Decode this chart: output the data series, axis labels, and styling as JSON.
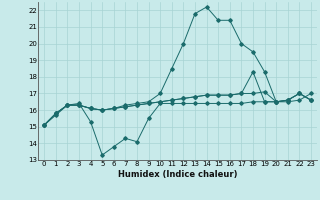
{
  "title": "",
  "xlabel": "Humidex (Indice chaleur)",
  "ylabel": "",
  "bg_color": "#c8eaea",
  "line_color": "#1a6b6b",
  "grid_color": "#a8d4d4",
  "xlim": [
    -0.5,
    23.5
  ],
  "ylim": [
    13,
    22.5
  ],
  "yticks": [
    13,
    14,
    15,
    16,
    17,
    18,
    19,
    20,
    21,
    22
  ],
  "xticks": [
    0,
    1,
    2,
    3,
    4,
    5,
    6,
    7,
    8,
    9,
    10,
    11,
    12,
    13,
    14,
    15,
    16,
    17,
    18,
    19,
    20,
    21,
    22,
    23
  ],
  "series": [
    [
      15.1,
      15.7,
      16.3,
      16.4,
      15.3,
      13.3,
      13.8,
      14.3,
      14.1,
      15.5,
      16.4,
      16.4,
      16.4,
      16.4,
      16.4,
      16.4,
      16.4,
      16.4,
      16.5,
      16.5,
      16.5,
      16.6,
      17.0,
      16.6
    ],
    [
      15.1,
      15.8,
      16.3,
      16.3,
      16.1,
      16.0,
      16.1,
      16.2,
      16.3,
      16.4,
      16.5,
      16.6,
      16.7,
      16.8,
      16.9,
      16.9,
      16.9,
      17.0,
      18.3,
      16.5,
      16.5,
      16.6,
      17.0,
      16.6
    ],
    [
      15.1,
      15.8,
      16.3,
      16.3,
      16.1,
      16.0,
      16.1,
      16.3,
      16.4,
      16.5,
      17.0,
      18.5,
      20.0,
      21.8,
      22.2,
      21.4,
      21.4,
      20.0,
      19.5,
      18.3,
      16.5,
      16.5,
      16.6,
      17.0
    ],
    [
      15.1,
      15.8,
      16.3,
      16.3,
      16.1,
      16.0,
      16.1,
      16.2,
      16.3,
      16.4,
      16.5,
      16.6,
      16.7,
      16.8,
      16.9,
      16.9,
      16.9,
      17.0,
      17.0,
      17.1,
      16.5,
      16.6,
      17.0,
      16.6
    ]
  ],
  "tick_fontsize": 5.0,
  "xlabel_fontsize": 6.0
}
